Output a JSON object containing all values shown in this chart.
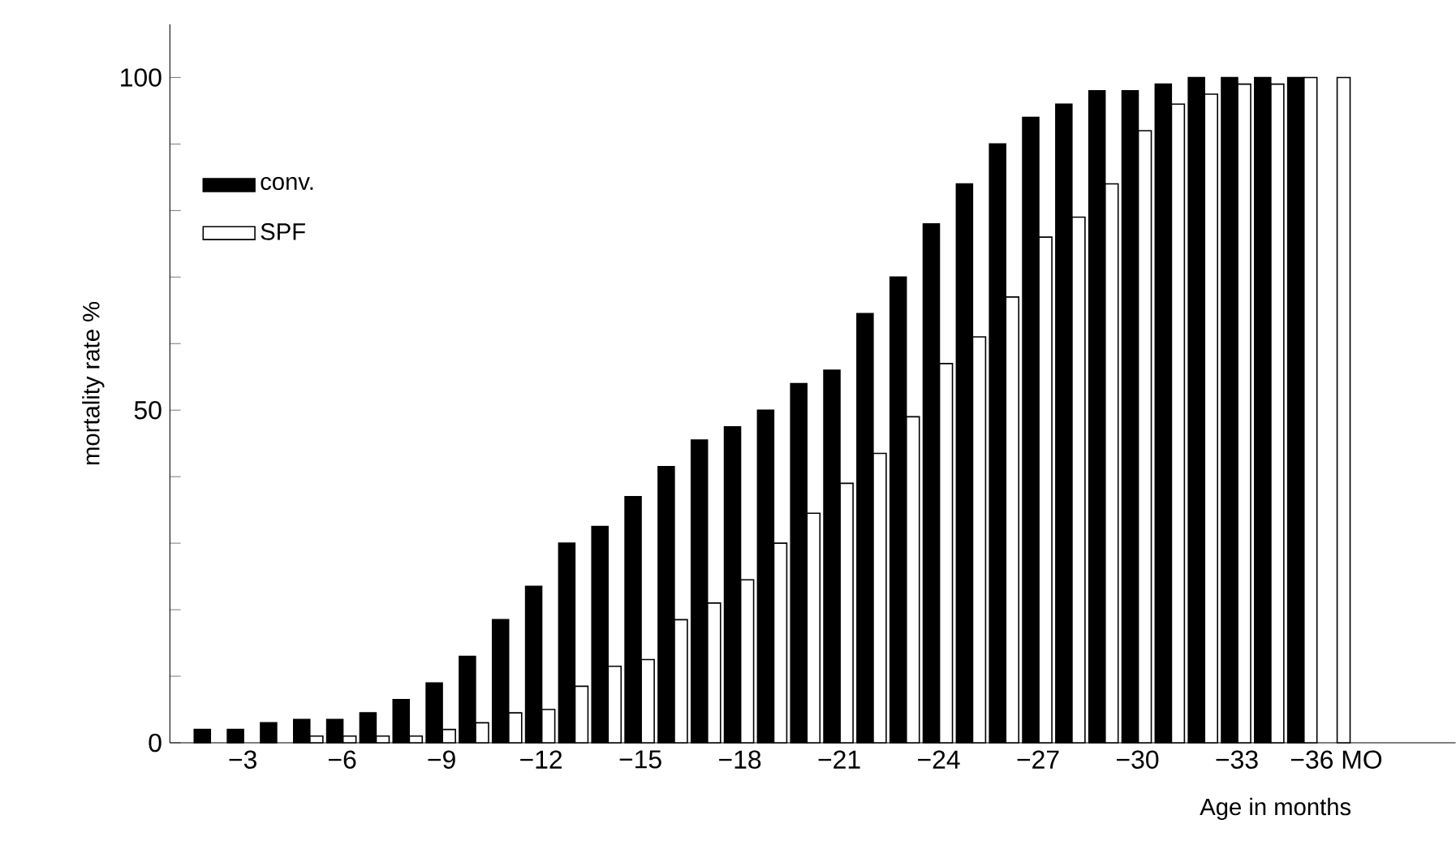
{
  "chart_data": {
    "type": "bar",
    "xlabel": "Age in months",
    "ylabel": "mortality rate %",
    "categories": [
      null,
      "−3",
      null,
      null,
      "−6",
      null,
      null,
      "−9",
      null,
      null,
      "−12",
      null,
      null,
      "−15",
      null,
      null,
      "−18",
      null,
      null,
      "−21",
      null,
      null,
      "−24",
      null,
      null,
      "−27",
      null,
      null,
      "−30",
      null,
      null,
      "−33",
      null,
      null,
      "−36 MO"
    ],
    "series": [
      {
        "name": "conv.",
        "color": "#000000",
        "values": [
          2,
          2,
          3,
          3.5,
          3.5,
          4.5,
          6.5,
          9,
          13,
          18.5,
          23.5,
          30,
          32.5,
          37,
          41.5,
          45.5,
          47.5,
          50,
          54,
          56,
          64.5,
          70,
          78,
          84,
          90,
          94,
          96,
          98,
          98,
          99,
          100,
          100,
          100,
          100,
          null
        ]
      },
      {
        "name": "SPF",
        "color": "#ffffff",
        "values": [
          null,
          null,
          null,
          1,
          1,
          1,
          1,
          2,
          3,
          4.5,
          5,
          8.5,
          11.5,
          12.5,
          18.5,
          21,
          24.5,
          30,
          34.5,
          39,
          43.5,
          49,
          57,
          61,
          67,
          76,
          79,
          84,
          92,
          96,
          97.5,
          99,
          99,
          100,
          100
        ]
      }
    ],
    "ylim": [
      0,
      108
    ],
    "yticks": [
      0,
      {
        "value": 10,
        "label": null
      },
      {
        "value": 20,
        "label": null
      },
      {
        "value": 30,
        "label": null
      },
      {
        "value": 40,
        "label": null
      },
      50,
      {
        "value": 60,
        "label": null
      },
      {
        "value": 70,
        "label": null
      },
      {
        "value": 80,
        "label": null
      },
      {
        "value": 90,
        "label": null
      },
      100
    ],
    "legend": "top left"
  }
}
